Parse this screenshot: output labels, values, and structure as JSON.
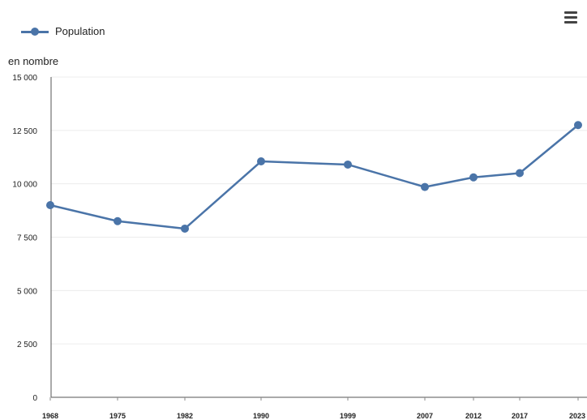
{
  "chart_data": {
    "type": "line",
    "ylabel": "en nombre",
    "categories": [
      "1968",
      "1975",
      "1982",
      "1990",
      "1999",
      "2007",
      "2012",
      "2017",
      "2023"
    ],
    "series": [
      {
        "name": "Population",
        "values": [
          9000,
          8250,
          7900,
          11050,
          10900,
          9850,
          10300,
          10500,
          12750
        ],
        "color": "#4a74a8"
      }
    ],
    "yticks": [
      {
        "value": 0,
        "label": "0"
      },
      {
        "value": 2500,
        "label": "2 500"
      },
      {
        "value": 5000,
        "label": "5 000"
      },
      {
        "value": 7500,
        "label": "7 500"
      },
      {
        "value": 10000,
        "label": "10 000"
      },
      {
        "value": 12500,
        "label": "12 500"
      },
      {
        "value": 15000,
        "label": "15 000"
      }
    ],
    "ylim": [
      0,
      15000
    ],
    "grid": true,
    "legend_position": "top-left"
  },
  "menu_icon": "hamburger-menu-icon"
}
